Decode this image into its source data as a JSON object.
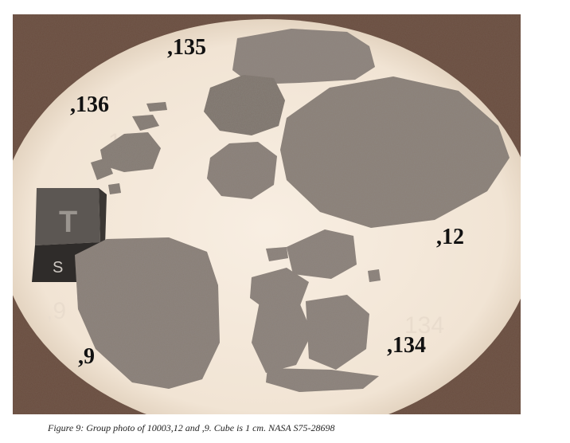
{
  "figure": {
    "sample_labels": {
      "s135": ",135",
      "s136": ",136",
      "s12": ",12",
      "s9": ",9",
      "s134": ",134"
    },
    "cube_letters": {
      "top": "T",
      "front": "S"
    },
    "caption": "Figure 9:  Group photo of 10003,12 and ,9.  Cube is 1 cm.  NASA S75-28698"
  }
}
